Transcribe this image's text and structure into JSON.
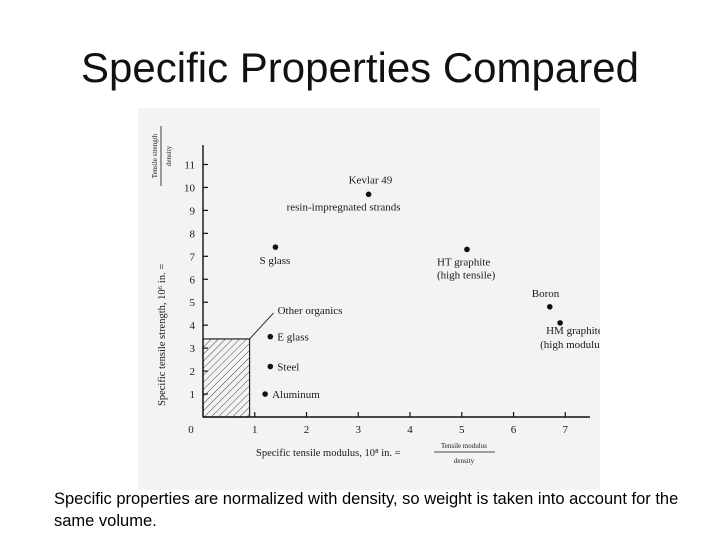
{
  "slide": {
    "title": "Specific Properties Compared",
    "caption": "Specific properties are normalized with density, so weight is taken into account for the same volume."
  },
  "chart_data": {
    "type": "scatter",
    "title": "",
    "xlabel": "Specific tensile modulus, 10⁸ in. =",
    "xlabel_fraction": {
      "numerator": "Tensile modulus",
      "denominator": "density"
    },
    "ylabel": "Specific tensile strength, 10⁶ in. =",
    "ylabel_fraction": {
      "numerator": "Tensile strength",
      "denominator": "density"
    },
    "xlim": [
      0,
      7.4
    ],
    "ylim": [
      0,
      11.5
    ],
    "x_ticks": [
      "1",
      "2",
      "3",
      "4",
      "5",
      "6",
      "7"
    ],
    "y_ticks": [
      "1",
      "2",
      "3",
      "4",
      "5",
      "6",
      "7",
      "8",
      "9",
      "10",
      "11"
    ],
    "origin_label": "0",
    "grid": false,
    "points": [
      {
        "label": "Kevlar 49",
        "label2": "resin-impregnated strands",
        "x": 3.2,
        "y": 9.7
      },
      {
        "label": "S glass",
        "label2": "",
        "x": 1.4,
        "y": 7.4
      },
      {
        "label": "HT graphite",
        "label2": "(high tensile)",
        "x": 5.1,
        "y": 7.3
      },
      {
        "label": "Boron",
        "label2": "",
        "x": 6.7,
        "y": 4.8
      },
      {
        "label": "HM graphite",
        "label2": "(high modulus)",
        "x": 6.9,
        "y": 4.1
      },
      {
        "label": "E glass",
        "label2": "",
        "x": 1.3,
        "y": 3.5
      },
      {
        "label": "Steel",
        "label2": "",
        "x": 1.3,
        "y": 2.2
      },
      {
        "label": "Aluminum",
        "label2": "",
        "x": 1.2,
        "y": 1.0
      }
    ],
    "region": {
      "label": "Other organics",
      "x": [
        0,
        0.9
      ],
      "y": [
        0,
        3.4
      ]
    }
  }
}
